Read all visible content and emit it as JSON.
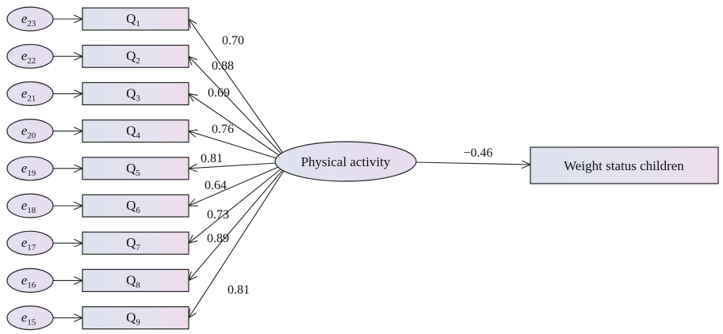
{
  "latent": {
    "label": "Physical activity"
  },
  "outcome": {
    "label": "Weight status children"
  },
  "path_coefficient": "−0.46",
  "items": [
    {
      "error": "e",
      "error_sub": "23",
      "q": "Q",
      "q_sub": "1",
      "loading": "0.70"
    },
    {
      "error": "e",
      "error_sub": "22",
      "q": "Q",
      "q_sub": "2",
      "loading": "0.88"
    },
    {
      "error": "e",
      "error_sub": "21",
      "q": "Q",
      "q_sub": "3",
      "loading": "0.69"
    },
    {
      "error": "e",
      "error_sub": "20",
      "q": "Q",
      "q_sub": "4",
      "loading": "0.76"
    },
    {
      "error": "e",
      "error_sub": "19",
      "q": "Q",
      "q_sub": "5",
      "loading": "0.81"
    },
    {
      "error": "e",
      "error_sub": "18",
      "q": "Q",
      "q_sub": "6",
      "loading": "0.64"
    },
    {
      "error": "e",
      "error_sub": "17",
      "q": "Q",
      "q_sub": "7",
      "loading": "0.73"
    },
    {
      "error": "e",
      "error_sub": "16",
      "q": "Q",
      "q_sub": "8",
      "loading": "0.89"
    },
    {
      "error": "e",
      "error_sub": "15",
      "q": "Q",
      "q_sub": "9",
      "loading": "0.81"
    }
  ],
  "colors": {
    "node_fill_left": "#dde2ee",
    "node_fill_right": "#ecdcec",
    "stroke": "#222222"
  }
}
